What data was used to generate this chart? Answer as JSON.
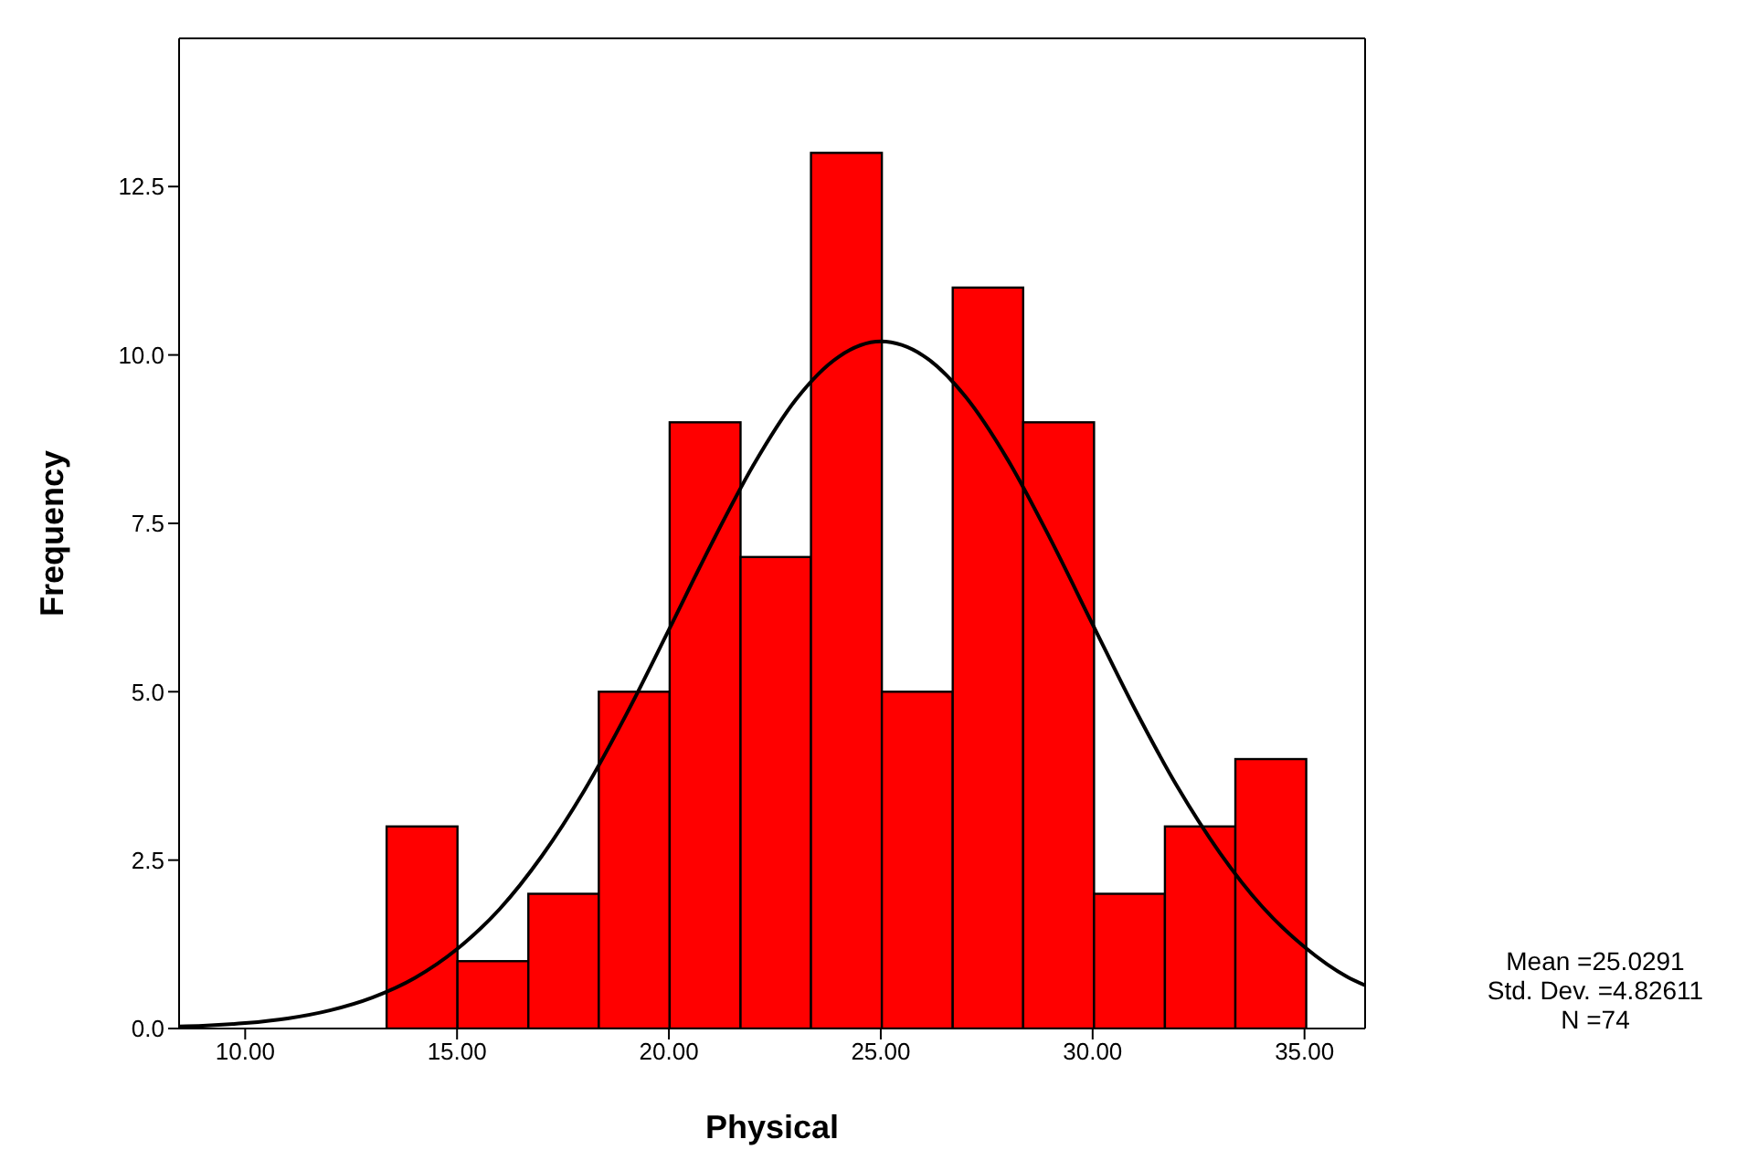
{
  "chart_data": {
    "type": "histogram",
    "xlabel": "Physical",
    "ylabel": "Frequency",
    "xlim": [
      8.44,
      36.43
    ],
    "ylim": [
      0,
      14.7
    ],
    "xticks": [
      {
        "value": 10,
        "label": "10.00"
      },
      {
        "value": 15,
        "label": "15.00"
      },
      {
        "value": 20,
        "label": "20.00"
      },
      {
        "value": 25,
        "label": "25.00"
      },
      {
        "value": 30,
        "label": "30.00"
      },
      {
        "value": 35,
        "label": "35.00"
      }
    ],
    "yticks": [
      {
        "value": 0,
        "label": "0.0"
      },
      2.5,
      {
        "value": 5,
        "label": "5.0"
      },
      7.5,
      {
        "value": 10,
        "label": "10.0"
      },
      12.5
    ],
    "marker": "none",
    "series": [
      {
        "color": "#ff0000",
        "bins": [
          13.33,
          15,
          16.67,
          18.33,
          20,
          21.67,
          23.33,
          25,
          26.67,
          28.33,
          30,
          31.67,
          33.33,
          35
        ],
        "values": [
          3,
          1,
          2,
          5,
          9,
          7,
          13,
          5,
          11,
          9,
          2,
          3,
          4
        ]
      },
      {
        "type": "line",
        "color": "#000000",
        "x": [
          8.44,
          9,
          10,
          11,
          12,
          13,
          14,
          15,
          16,
          17,
          18,
          19,
          20,
          21,
          22,
          23,
          24,
          25,
          26,
          27,
          28,
          29,
          30,
          31,
          32,
          33,
          34,
          35,
          36,
          36.43
        ],
        "values": [
          0.03,
          0.04,
          0.08,
          0.15,
          0.27,
          0.46,
          0.75,
          1.18,
          1.77,
          2.56,
          3.53,
          4.67,
          5.92,
          7.19,
          8.37,
          9.34,
          9.97,
          10.2,
          9.99,
          9.38,
          8.44,
          7.27,
          6.0,
          4.74,
          3.59,
          2.61,
          1.81,
          1.21,
          0.77,
          0.64
        ]
      }
    ],
    "annotations": [
      "Mean =25.0291",
      "Std. Dev. =4.82611",
      "N =74"
    ]
  }
}
